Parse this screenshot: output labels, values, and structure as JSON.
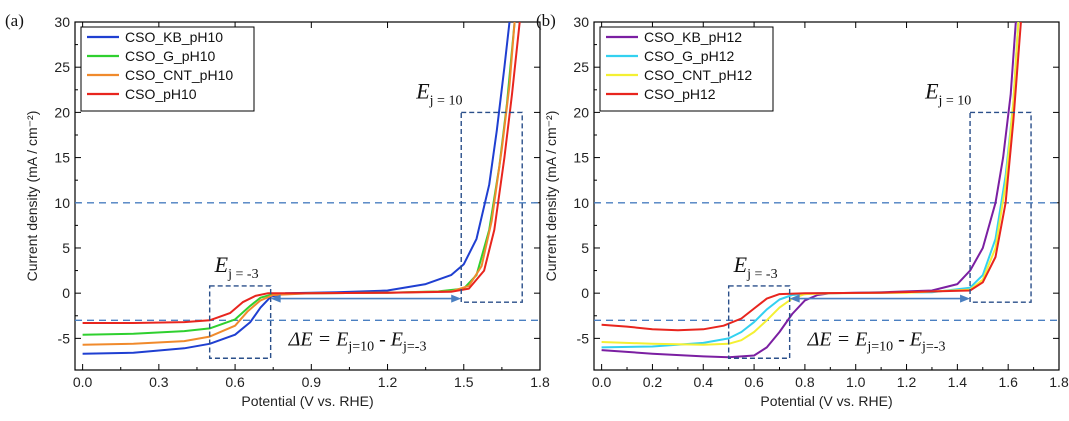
{
  "chart_data": [
    {
      "panel_label": "(a)",
      "type": "line",
      "xlabel": "Potential (V vs. RHE)",
      "ylabel": "Current density (mA / cm⁻²)",
      "xlim": [
        -0.03,
        1.8
      ],
      "ylim": [
        -8.5,
        30
      ],
      "xticks": [
        "0.0",
        "0.3",
        "0.6",
        "0.9",
        "1.2",
        "1.5",
        "1.8"
      ],
      "xtick_values": [
        0.0,
        0.3,
        0.6,
        0.9,
        1.2,
        1.5,
        1.8
      ],
      "yticks": [
        "-5",
        "0",
        "5",
        "10",
        "15",
        "20",
        "25",
        "30"
      ],
      "ytick_values": [
        -5,
        0,
        5,
        10,
        15,
        20,
        25,
        30
      ],
      "legend_position": "top-left",
      "hlines": [
        10,
        -3
      ],
      "annotations": {
        "e_high": "E",
        "e_high_sub": "j = 10",
        "e_low": "E",
        "e_low_sub": "j = -3",
        "delta": "ΔE = E",
        "delta_sub1": "j=10",
        "delta_mid": " - E",
        "delta_sub2": "j=-3"
      },
      "boxes": [
        {
          "x": [
            0.5,
            0.74
          ],
          "y": [
            -7.2,
            0.8
          ]
        },
        {
          "x": [
            1.49,
            1.73
          ],
          "y": [
            -1.0,
            20.0
          ]
        }
      ],
      "arrow": {
        "x": [
          0.74,
          1.49
        ],
        "y": -0.6
      },
      "series": [
        {
          "name": "CSO_KB_pH10",
          "color": "#1f3fd1",
          "points": [
            [
              0,
              -6.7
            ],
            [
              0.2,
              -6.6
            ],
            [
              0.4,
              -6.1
            ],
            [
              0.5,
              -5.6
            ],
            [
              0.6,
              -4.6
            ],
            [
              0.66,
              -3.2
            ],
            [
              0.7,
              -1.6
            ],
            [
              0.74,
              -0.4
            ],
            [
              0.8,
              0
            ],
            [
              1.0,
              0.1
            ],
            [
              1.2,
              0.3
            ],
            [
              1.35,
              1.0
            ],
            [
              1.45,
              2.0
            ],
            [
              1.5,
              3.2
            ],
            [
              1.55,
              6
            ],
            [
              1.6,
              12
            ],
            [
              1.63,
              18
            ],
            [
              1.66,
              25
            ],
            [
              1.68,
              30
            ]
          ]
        },
        {
          "name": "CSO_G_pH10",
          "color": "#2fd02f",
          "points": [
            [
              0,
              -4.6
            ],
            [
              0.2,
              -4.5
            ],
            [
              0.4,
              -4.2
            ],
            [
              0.5,
              -3.9
            ],
            [
              0.6,
              -2.9
            ],
            [
              0.66,
              -1.4
            ],
            [
              0.7,
              -0.5
            ],
            [
              0.75,
              -0.1
            ],
            [
              0.9,
              0
            ],
            [
              1.2,
              0.05
            ],
            [
              1.4,
              0.2
            ],
            [
              1.5,
              0.5
            ],
            [
              1.55,
              2
            ],
            [
              1.6,
              7
            ],
            [
              1.64,
              14
            ],
            [
              1.67,
              21
            ],
            [
              1.7,
              30
            ]
          ]
        },
        {
          "name": "CSO_CNT_pH10",
          "color": "#f08a2c",
          "points": [
            [
              0,
              -5.7
            ],
            [
              0.2,
              -5.6
            ],
            [
              0.4,
              -5.3
            ],
            [
              0.5,
              -4.8
            ],
            [
              0.6,
              -3.6
            ],
            [
              0.65,
              -2.0
            ],
            [
              0.7,
              -0.8
            ],
            [
              0.75,
              -0.2
            ],
            [
              0.9,
              0
            ],
            [
              1.2,
              0.05
            ],
            [
              1.45,
              0.2
            ],
            [
              1.52,
              0.8
            ],
            [
              1.57,
              3
            ],
            [
              1.61,
              8
            ],
            [
              1.65,
              16
            ],
            [
              1.68,
              23
            ],
            [
              1.7,
              30
            ]
          ]
        },
        {
          "name": "CSO_pH10",
          "color": "#e8251e",
          "points": [
            [
              0,
              -3.3
            ],
            [
              0.2,
              -3.3
            ],
            [
              0.4,
              -3.2
            ],
            [
              0.5,
              -3.0
            ],
            [
              0.58,
              -2.2
            ],
            [
              0.63,
              -1.0
            ],
            [
              0.68,
              -0.3
            ],
            [
              0.73,
              0
            ],
            [
              0.9,
              0
            ],
            [
              1.2,
              0.05
            ],
            [
              1.45,
              0.15
            ],
            [
              1.52,
              0.5
            ],
            [
              1.58,
              2.5
            ],
            [
              1.62,
              7
            ],
            [
              1.66,
              15
            ],
            [
              1.69,
              22
            ],
            [
              1.72,
              30
            ]
          ]
        }
      ]
    },
    {
      "panel_label": "(b)",
      "type": "line",
      "xlabel": "Potential (V vs. RHE)",
      "ylabel": "Current density (mA / cm⁻²)",
      "xlim": [
        -0.03,
        1.8
      ],
      "ylim": [
        -8.5,
        30
      ],
      "xticks": [
        "0.0",
        "0.2",
        "0.4",
        "0.6",
        "0.8",
        "1.0",
        "1.2",
        "1.4",
        "1.6",
        "1.8"
      ],
      "xtick_values": [
        0.0,
        0.2,
        0.4,
        0.6,
        0.8,
        1.0,
        1.2,
        1.4,
        1.6,
        1.8
      ],
      "yticks": [
        "-5",
        "0",
        "5",
        "10",
        "15",
        "20",
        "25",
        "30"
      ],
      "ytick_values": [
        -5,
        0,
        5,
        10,
        15,
        20,
        25,
        30
      ],
      "legend_position": "top-left",
      "hlines": [
        10,
        -3
      ],
      "annotations": {
        "e_high": "E",
        "e_high_sub": "j = 10",
        "e_low": "E",
        "e_low_sub": "j = -3",
        "delta": "ΔE = E",
        "delta_sub1": "j=10",
        "delta_mid": " - E",
        "delta_sub2": "j=-3"
      },
      "boxes": [
        {
          "x": [
            0.5,
            0.74
          ],
          "y": [
            -7.2,
            0.8
          ]
        },
        {
          "x": [
            1.45,
            1.69
          ],
          "y": [
            -1.0,
            20.0
          ]
        }
      ],
      "arrow": {
        "x": [
          0.74,
          1.45
        ],
        "y": -0.6
      },
      "series": [
        {
          "name": "CSO_KB_pH12",
          "color": "#7b1fa2",
          "points": [
            [
              0,
              -6.3
            ],
            [
              0.2,
              -6.7
            ],
            [
              0.4,
              -7.0
            ],
            [
              0.5,
              -7.1
            ],
            [
              0.6,
              -6.9
            ],
            [
              0.65,
              -6.0
            ],
            [
              0.7,
              -4.3
            ],
            [
              0.75,
              -2.3
            ],
            [
              0.8,
              -0.8
            ],
            [
              0.85,
              -0.2
            ],
            [
              0.9,
              0
            ],
            [
              1.1,
              0.1
            ],
            [
              1.3,
              0.3
            ],
            [
              1.4,
              1
            ],
            [
              1.45,
              2.5
            ],
            [
              1.5,
              5
            ],
            [
              1.55,
              10
            ],
            [
              1.58,
              15
            ],
            [
              1.61,
              22
            ],
            [
              1.63,
              30
            ]
          ]
        },
        {
          "name": "CSO_G_pH12",
          "color": "#33d1f0",
          "points": [
            [
              0,
              -6.0
            ],
            [
              0.2,
              -5.9
            ],
            [
              0.4,
              -5.5
            ],
            [
              0.5,
              -5.0
            ],
            [
              0.55,
              -4.3
            ],
            [
              0.6,
              -3.2
            ],
            [
              0.65,
              -1.8
            ],
            [
              0.7,
              -0.7
            ],
            [
              0.75,
              -0.2
            ],
            [
              0.85,
              0
            ],
            [
              1.1,
              0.05
            ],
            [
              1.3,
              0.1
            ],
            [
              1.45,
              0.6
            ],
            [
              1.5,
              2
            ],
            [
              1.55,
              6
            ],
            [
              1.59,
              13
            ],
            [
              1.62,
              21
            ],
            [
              1.64,
              30
            ]
          ]
        },
        {
          "name": "CSO_CNT_pH12",
          "color": "#f4f033",
          "points": [
            [
              0,
              -5.4
            ],
            [
              0.2,
              -5.6
            ],
            [
              0.4,
              -5.7
            ],
            [
              0.5,
              -5.6
            ],
            [
              0.55,
              -5.2
            ],
            [
              0.6,
              -4.3
            ],
            [
              0.65,
              -3.0
            ],
            [
              0.7,
              -1.6
            ],
            [
              0.75,
              -0.6
            ],
            [
              0.8,
              -0.1
            ],
            [
              0.9,
              0
            ],
            [
              1.2,
              0.05
            ],
            [
              1.45,
              0.4
            ],
            [
              1.5,
              1.5
            ],
            [
              1.55,
              5
            ],
            [
              1.59,
              12
            ],
            [
              1.62,
              21
            ],
            [
              1.64,
              30
            ]
          ]
        },
        {
          "name": "CSO_pH12",
          "color": "#e8251e",
          "points": [
            [
              0,
              -3.5
            ],
            [
              0.1,
              -3.7
            ],
            [
              0.2,
              -4.0
            ],
            [
              0.3,
              -4.1
            ],
            [
              0.4,
              -4.0
            ],
            [
              0.48,
              -3.6
            ],
            [
              0.55,
              -2.8
            ],
            [
              0.6,
              -1.7
            ],
            [
              0.65,
              -0.6
            ],
            [
              0.7,
              -0.1
            ],
            [
              0.8,
              0
            ],
            [
              1.1,
              0.05
            ],
            [
              1.45,
              0.3
            ],
            [
              1.5,
              1.2
            ],
            [
              1.55,
              4
            ],
            [
              1.59,
              10
            ],
            [
              1.62,
              19
            ],
            [
              1.65,
              30
            ]
          ]
        }
      ]
    }
  ]
}
